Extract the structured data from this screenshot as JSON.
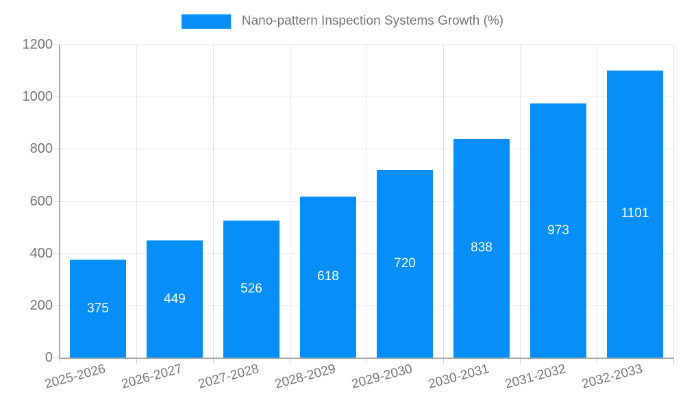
{
  "legend": {
    "label": "Nano-pattern Inspection Systems Growth (%)"
  },
  "chart_data": {
    "type": "bar",
    "title": "Nano-pattern Inspection Systems Growth (%)",
    "categories": [
      "2025-2026",
      "2026-2027",
      "2027-2028",
      "2028-2029",
      "2029-2030",
      "2030-2031",
      "2031-2032",
      "2032-2033"
    ],
    "values": [
      375,
      449,
      526,
      618,
      720,
      838,
      973,
      1101
    ],
    "xlabel": "",
    "ylabel": "",
    "ylim": [
      0,
      1200
    ],
    "ytick_step": 200,
    "ytick_labels": [
      "0",
      "200",
      "400",
      "600",
      "800",
      "1000",
      "1200"
    ],
    "grid": true,
    "legend_position": "top",
    "bar_color": "#058ef7",
    "bar_label_color": "#ffffff",
    "axis_text_color": "#757575",
    "gridline_color": "#e4e4e4",
    "axis_line_color": "#a6a6a6"
  }
}
